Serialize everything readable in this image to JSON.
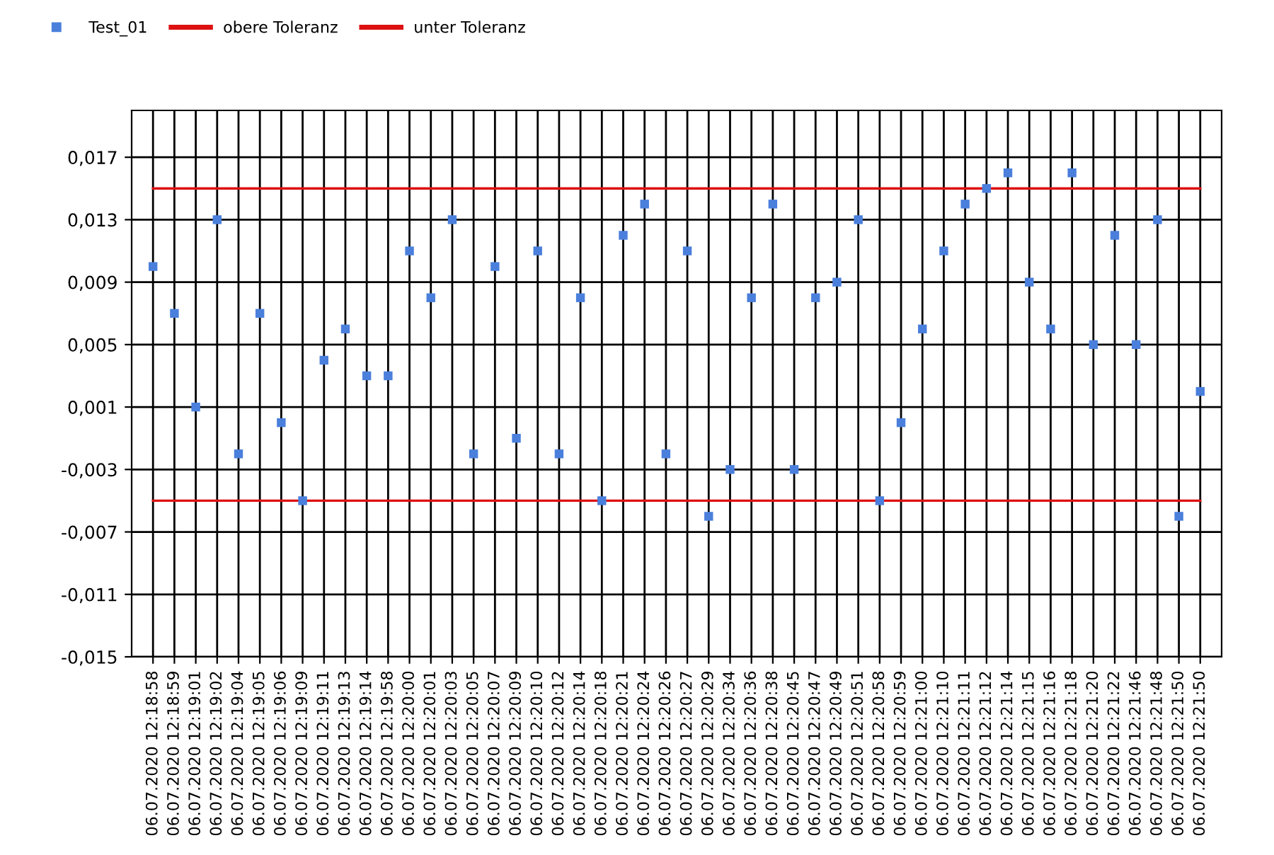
{
  "chart_data": {
    "type": "scatter",
    "categories": [
      "06.07.2020 12:18:58",
      "06.07.2020 12:18:59",
      "06.07.2020 12:19:01",
      "06.07.2020 12:19:02",
      "06.07.2020 12:19:04",
      "06.07.2020 12:19:05",
      "06.07.2020 12:19:06",
      "06.07.2020 12:19:09",
      "06.07.2020 12:19:11",
      "06.07.2020 12:19:13",
      "06.07.2020 12:19:14",
      "06.07.2020 12:19:58",
      "06.07.2020 12:20:00",
      "06.07.2020 12:20:01",
      "06.07.2020 12:20:03",
      "06.07.2020 12:20:05",
      "06.07.2020 12:20:07",
      "06.07.2020 12:20:09",
      "06.07.2020 12:20:10",
      "06.07.2020 12:20:12",
      "06.07.2020 12:20:14",
      "06.07.2020 12:20:18",
      "06.07.2020 12:20:21",
      "06.07.2020 12:20:24",
      "06.07.2020 12:20:26",
      "06.07.2020 12:20:27",
      "06.07.2020 12:20:29",
      "06.07.2020 12:20:34",
      "06.07.2020 12:20:36",
      "06.07.2020 12:20:38",
      "06.07.2020 12:20:45",
      "06.07.2020 12:20:47",
      "06.07.2020 12:20:49",
      "06.07.2020 12:20:51",
      "06.07.2020 12:20:58",
      "06.07.2020 12:20:59",
      "06.07.2020 12:21:00",
      "06.07.2020 12:21:10",
      "06.07.2020 12:21:11",
      "06.07.2020 12:21:12",
      "06.07.2020 12:21:14",
      "06.07.2020 12:21:15",
      "06.07.2020 12:21:16",
      "06.07.2020 12:21:18",
      "06.07.2020 12:21:20",
      "06.07.2020 12:21:22",
      "06.07.2020 12:21:46",
      "06.07.2020 12:21:48",
      "06.07.2020 12:21:50",
      "06.07.2020 12:21:50"
    ],
    "series": [
      {
        "name": "Test_01",
        "marker": "square",
        "color": "#4a7fdc",
        "values": [
          0.01,
          0.007,
          0.001,
          0.013,
          -0.002,
          0.007,
          0.0,
          -0.005,
          0.004,
          0.006,
          0.003,
          0.003,
          0.011,
          0.008,
          0.013,
          -0.002,
          0.01,
          -0.001,
          0.011,
          -0.002,
          0.008,
          -0.005,
          0.012,
          0.014,
          -0.002,
          0.011,
          -0.006,
          -0.003,
          0.008,
          0.014,
          -0.003,
          0.008,
          0.009,
          0.013,
          -0.005,
          0.0,
          0.006,
          0.011,
          0.014,
          0.015,
          0.016,
          0.009,
          0.006,
          0.016,
          0.005,
          0.012,
          0.005,
          0.013,
          -0.006,
          0.002
        ]
      },
      {
        "name": "obere Toleranz",
        "type": "line",
        "marker": "none",
        "line_style": "solid",
        "color": "#dd1111",
        "values": [
          0.015,
          0.015,
          0.015,
          0.015,
          0.015,
          0.015,
          0.015,
          0.015,
          0.015,
          0.015,
          0.015,
          0.015,
          0.015,
          0.015,
          0.015,
          0.015,
          0.015,
          0.015,
          0.015,
          0.015,
          0.015,
          0.015,
          0.015,
          0.015,
          0.015,
          0.015,
          0.015,
          0.015,
          0.015,
          0.015,
          0.015,
          0.015,
          0.015,
          0.015,
          0.015,
          0.015,
          0.015,
          0.015,
          0.015,
          0.015,
          0.015,
          0.015,
          0.015,
          0.015,
          0.015,
          0.015,
          0.015,
          0.015,
          0.015,
          0.015
        ]
      },
      {
        "name": "unter Toleranz",
        "type": "line",
        "marker": "none",
        "line_style": "solid",
        "color": "#dd1111",
        "values": [
          -0.005,
          -0.005,
          -0.005,
          -0.005,
          -0.005,
          -0.005,
          -0.005,
          -0.005,
          -0.005,
          -0.005,
          -0.005,
          -0.005,
          -0.005,
          -0.005,
          -0.005,
          -0.005,
          -0.005,
          -0.005,
          -0.005,
          -0.005,
          -0.005,
          -0.005,
          -0.005,
          -0.005,
          -0.005,
          -0.005,
          -0.005,
          -0.005,
          -0.005,
          -0.005,
          -0.005,
          -0.005,
          -0.005,
          -0.005,
          -0.005,
          -0.005,
          -0.005,
          -0.005,
          -0.005,
          -0.005,
          -0.005,
          -0.005,
          -0.005,
          -0.005,
          -0.005,
          -0.005,
          -0.005,
          -0.005,
          -0.005,
          -0.005
        ]
      }
    ],
    "ylim": [
      -0.015,
      0.02
    ],
    "yticks": [
      {
        "value": -0.015,
        "label": "-0,015"
      },
      {
        "value": -0.011,
        "label": "-0,011"
      },
      {
        "value": -0.007,
        "label": "-0,007"
      },
      {
        "value": -0.003,
        "label": "-0,003"
      },
      {
        "value": 0.001,
        "label": "0,001"
      },
      {
        "value": 0.005,
        "label": "0,005"
      },
      {
        "value": 0.009,
        "label": "0,009"
      },
      {
        "value": 0.013,
        "label": "0,013"
      },
      {
        "value": 0.017,
        "label": "0,017"
      }
    ],
    "grid": true,
    "legend": "top left"
  }
}
